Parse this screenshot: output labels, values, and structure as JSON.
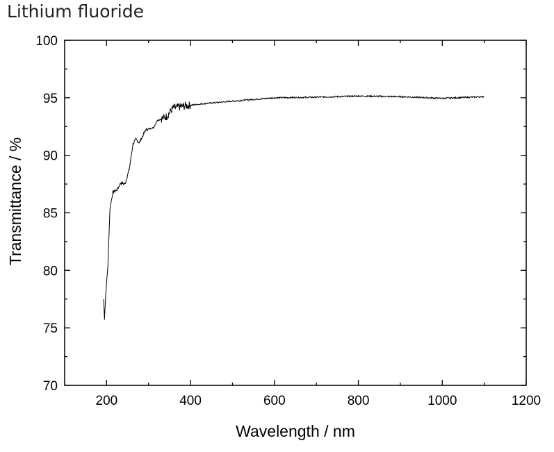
{
  "chart_data": {
    "type": "line",
    "title": "Lithium fluoride",
    "xlabel": "Wavelength / nm",
    "ylabel": "Transmittance / %",
    "xlim": [
      100,
      1200
    ],
    "ylim": [
      70,
      100
    ],
    "xticks": [
      200,
      400,
      600,
      800,
      1000,
      1200
    ],
    "yticks": [
      70,
      75,
      80,
      85,
      90,
      95,
      100
    ],
    "grid": false,
    "line_color": "#000000",
    "series": [
      {
        "x": [
          193,
          195,
          198,
          203,
          208,
          215,
          225,
          234,
          244,
          254,
          263,
          270,
          278,
          293,
          312,
          320,
          344,
          358,
          388,
          434,
          514,
          600,
          700,
          800,
          900,
          1000,
          1100
        ],
        "y": [
          77.5,
          75.8,
          78,
          80.4,
          85.4,
          86.8,
          87,
          87.6,
          87.5,
          88.8,
          91,
          91.4,
          91.1,
          92.2,
          92.4,
          93,
          93.4,
          94.1,
          94.3,
          94.5,
          94.75,
          95.0,
          95.05,
          95.15,
          95.1,
          94.95,
          95.1
        ]
      }
    ]
  }
}
